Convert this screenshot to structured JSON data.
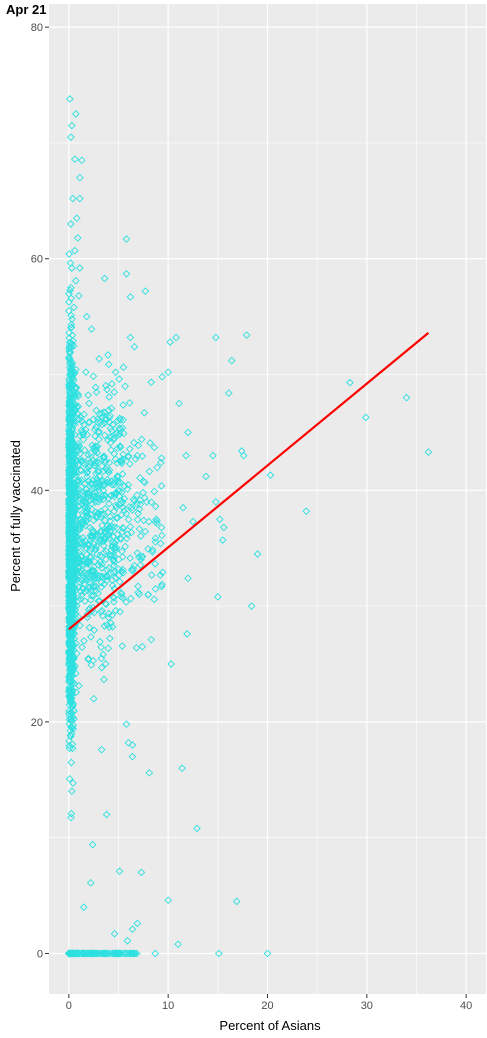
{
  "chart_data": {
    "type": "scatter",
    "title": "Apr 21",
    "xlabel": "Percent of Asians",
    "ylabel": "Percent of fully vaccinated",
    "xlim": [
      -2,
      42
    ],
    "ylim": [
      -3.5,
      82
    ],
    "xticks": [
      0,
      10,
      20,
      30,
      40
    ],
    "yticks": [
      0,
      20,
      40,
      60,
      80
    ],
    "grid": true,
    "legend": "none",
    "colors": {
      "panel": "#ebebeb",
      "grid": "#ffffff",
      "points": "#2ee0e0",
      "trend": "#ff0000"
    },
    "trend_line": {
      "x": [
        0,
        36.2
      ],
      "y": [
        28.0,
        53.6
      ]
    },
    "outlier_points": [
      [
        0.1,
        73.8
      ],
      [
        0.3,
        71.5
      ],
      [
        0.2,
        70.5
      ],
      [
        0.7,
        72.5
      ],
      [
        0.6,
        68.6
      ],
      [
        1.3,
        68.5
      ],
      [
        1.1,
        67.0
      ],
      [
        0.4,
        65.2
      ],
      [
        1.1,
        65.2
      ],
      [
        0.8,
        63.5
      ],
      [
        0.2,
        63.0
      ],
      [
        0.9,
        61.8
      ],
      [
        0.6,
        60.7
      ],
      [
        5.8,
        61.7
      ],
      [
        0.3,
        59.2
      ],
      [
        1.1,
        59.2
      ],
      [
        0.7,
        58.1
      ],
      [
        3.6,
        58.3
      ],
      [
        5.8,
        58.7
      ],
      [
        0.2,
        57.5
      ],
      [
        1.0,
        56.8
      ],
      [
        7.7,
        57.2
      ],
      [
        0.5,
        55.8
      ],
      [
        6.2,
        56.7
      ],
      [
        1.8,
        55.0
      ],
      [
        6.2,
        53.2
      ],
      [
        6.6,
        52.4
      ],
      [
        10.2,
        52.8
      ],
      [
        10.8,
        53.2
      ],
      [
        14.8,
        53.2
      ],
      [
        17.9,
        53.4
      ],
      [
        9.4,
        49.8
      ],
      [
        10.0,
        50.2
      ],
      [
        16.4,
        51.2
      ],
      [
        16.1,
        48.4
      ],
      [
        28.3,
        49.3
      ],
      [
        11.1,
        47.5
      ],
      [
        7.6,
        46.7
      ],
      [
        29.9,
        46.3
      ],
      [
        34.0,
        48.0
      ],
      [
        12.0,
        45.0
      ],
      [
        13.8,
        41.2
      ],
      [
        14.5,
        43.0
      ],
      [
        17.4,
        43.4
      ],
      [
        17.6,
        43.0
      ],
      [
        36.2,
        43.3
      ],
      [
        20.3,
        41.3
      ],
      [
        11.8,
        43.0
      ],
      [
        14.8,
        39.0
      ],
      [
        11.5,
        38.5
      ],
      [
        12.5,
        37.3
      ],
      [
        15.2,
        37.5
      ],
      [
        15.6,
        36.8
      ],
      [
        15.5,
        35.7
      ],
      [
        23.9,
        38.2
      ],
      [
        19.0,
        34.5
      ],
      [
        12.0,
        32.4
      ],
      [
        15.0,
        30.8
      ],
      [
        18.4,
        30.0
      ],
      [
        8.0,
        31.0
      ],
      [
        11.9,
        27.6
      ],
      [
        8.3,
        27.1
      ],
      [
        6.8,
        26.4
      ],
      [
        7.4,
        26.5
      ],
      [
        10.3,
        25.0
      ],
      [
        5.8,
        19.8
      ],
      [
        6.0,
        18.2
      ],
      [
        6.4,
        18.0
      ],
      [
        6.4,
        17.0
      ],
      [
        11.4,
        16.0
      ],
      [
        8.1,
        15.6
      ],
      [
        12.9,
        10.8
      ],
      [
        7.3,
        7.0
      ],
      [
        5.1,
        7.1
      ],
      [
        10.0,
        4.6
      ],
      [
        16.9,
        4.5
      ],
      [
        6.4,
        2.1
      ],
      [
        6.9,
        2.6
      ],
      [
        11.0,
        0.8
      ],
      [
        5.9,
        1.1
      ],
      [
        4.6,
        1.7
      ],
      [
        8.7,
        0.0
      ],
      [
        15.1,
        0.0
      ],
      [
        20.0,
        0.0
      ],
      [
        3.3,
        17.6
      ],
      [
        2.5,
        22.0
      ],
      [
        3.8,
        12.0
      ],
      [
        2.4,
        9.4
      ],
      [
        1.5,
        4.0
      ],
      [
        2.2,
        6.1
      ]
    ]
  }
}
